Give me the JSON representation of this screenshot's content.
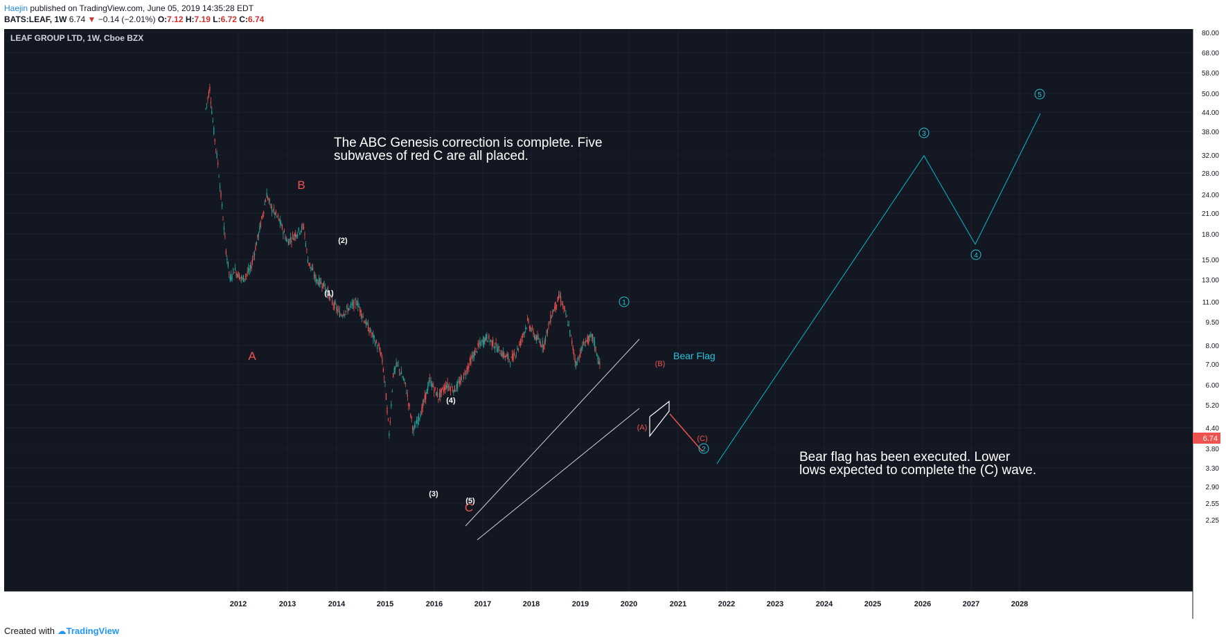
{
  "header": {
    "author": "Haejin",
    "published": "published on TradingView.com, June 05, 2019 14:35:28 EDT",
    "symbol": "BATS:LEAF, 1W",
    "last": "6.74",
    "arrow": "▼",
    "change": "−0.14 (−2.01%)",
    "o_label": "O:",
    "o_val": "7.12",
    "h_label": "H:",
    "h_val": "7.19",
    "l_label": "L:",
    "l_val": "6.72",
    "c_label": "C:",
    "c_val": "6.74"
  },
  "chart": {
    "title": "LEAF GROUP LTD, 1W, Cboe BZX",
    "price_labels": [
      "80.00",
      "68.00",
      "58.00",
      "50.00",
      "44.00",
      "38.00",
      "32.00",
      "28.00",
      "24.00",
      "21.00",
      "18.00",
      "15.00",
      "13.00",
      "11.00",
      "9.50",
      "8.00",
      "7.00",
      "6.00",
      "5.20",
      "4.40",
      "3.80",
      "3.30",
      "2.90",
      "2.55",
      "2.25"
    ],
    "current_price_label": "6.74",
    "year_labels": [
      "2012",
      "2013",
      "2014",
      "2015",
      "2016",
      "2017",
      "2018",
      "2019",
      "2020",
      "2021",
      "2022",
      "2023",
      "2024",
      "2025",
      "2026",
      "2027",
      "2028"
    ],
    "note1": [
      "The ABC Genesis correction is complete. Five",
      "subwaves of red C are all placed."
    ],
    "note2": [
      "Bear flag has been executed. Lower",
      "lows expected to complete the (C) wave."
    ],
    "bear_flag_label": "Bear Flag",
    "wave_labels": {
      "A": "A",
      "B": "B",
      "C": "C",
      "w1": "(1)",
      "w2": "(2)",
      "w3": "(3)",
      "w4": "(4)",
      "w5": "(5)",
      "cA": "(A)",
      "cB": "(B)",
      "cC": "(C)",
      "c1": "1",
      "c2": "2",
      "c3": "3",
      "c4": "4",
      "c5": "5"
    },
    "colors": {
      "background": "#131722",
      "up_candle": "#26a69a",
      "down_candle": "#ef5350",
      "projection": "#00bcd4",
      "red_label": "#ef5350",
      "price_tag": "#ef5350"
    },
    "series_points": [
      [
        "2011-05",
        45
      ],
      [
        "2011-06",
        52
      ],
      [
        "2011-07",
        38
      ],
      [
        "2011-08",
        30
      ],
      [
        "2011-09",
        22
      ],
      [
        "2011-10",
        16
      ],
      [
        "2011-11",
        13
      ],
      [
        "2011-12",
        14
      ],
      [
        "2012-02",
        13
      ],
      [
        "2012-04",
        14
      ],
      [
        "2012-06",
        18
      ],
      [
        "2012-08",
        24
      ],
      [
        "2012-09",
        22
      ],
      [
        "2012-11",
        20
      ],
      [
        "2013-01",
        17
      ],
      [
        "2013-03",
        18
      ],
      [
        "2013-05",
        19
      ],
      [
        "2013-06",
        15
      ],
      [
        "2013-08",
        13
      ],
      [
        "2013-10",
        12.5
      ],
      [
        "2013-12",
        11
      ],
      [
        "2014-02",
        10
      ],
      [
        "2014-04",
        10.5
      ],
      [
        "2014-06",
        11
      ],
      [
        "2014-08",
        9.5
      ],
      [
        "2014-10",
        8.5
      ],
      [
        "2014-12",
        7.5
      ],
      [
        "2015-01",
        6
      ],
      [
        "2015-02",
        4.2
      ],
      [
        "2015-03",
        6.5
      ],
      [
        "2015-04",
        7
      ],
      [
        "2015-06",
        6
      ],
      [
        "2015-08",
        4.3
      ],
      [
        "2015-10",
        5
      ],
      [
        "2015-12",
        6.2
      ],
      [
        "2016-02",
        5.5
      ],
      [
        "2016-04",
        6
      ],
      [
        "2016-06",
        5.8
      ],
      [
        "2016-08",
        6.3
      ],
      [
        "2016-10",
        7.2
      ],
      [
        "2016-12",
        8
      ],
      [
        "2017-02",
        8.5
      ],
      [
        "2017-04",
        8
      ],
      [
        "2017-06",
        7.5
      ],
      [
        "2017-08",
        7.2
      ],
      [
        "2017-10",
        8
      ],
      [
        "2017-12",
        9.5
      ],
      [
        "2018-02",
        8.5
      ],
      [
        "2018-04",
        8
      ],
      [
        "2018-06",
        10
      ],
      [
        "2018-08",
        11.5
      ],
      [
        "2018-10",
        9.5
      ],
      [
        "2018-12",
        7
      ],
      [
        "2019-02",
        8.2
      ],
      [
        "2019-04",
        8.5
      ],
      [
        "2019-06",
        6.74
      ]
    ]
  },
  "footer": {
    "created_with": "Created with",
    "brand": "TradingView"
  }
}
